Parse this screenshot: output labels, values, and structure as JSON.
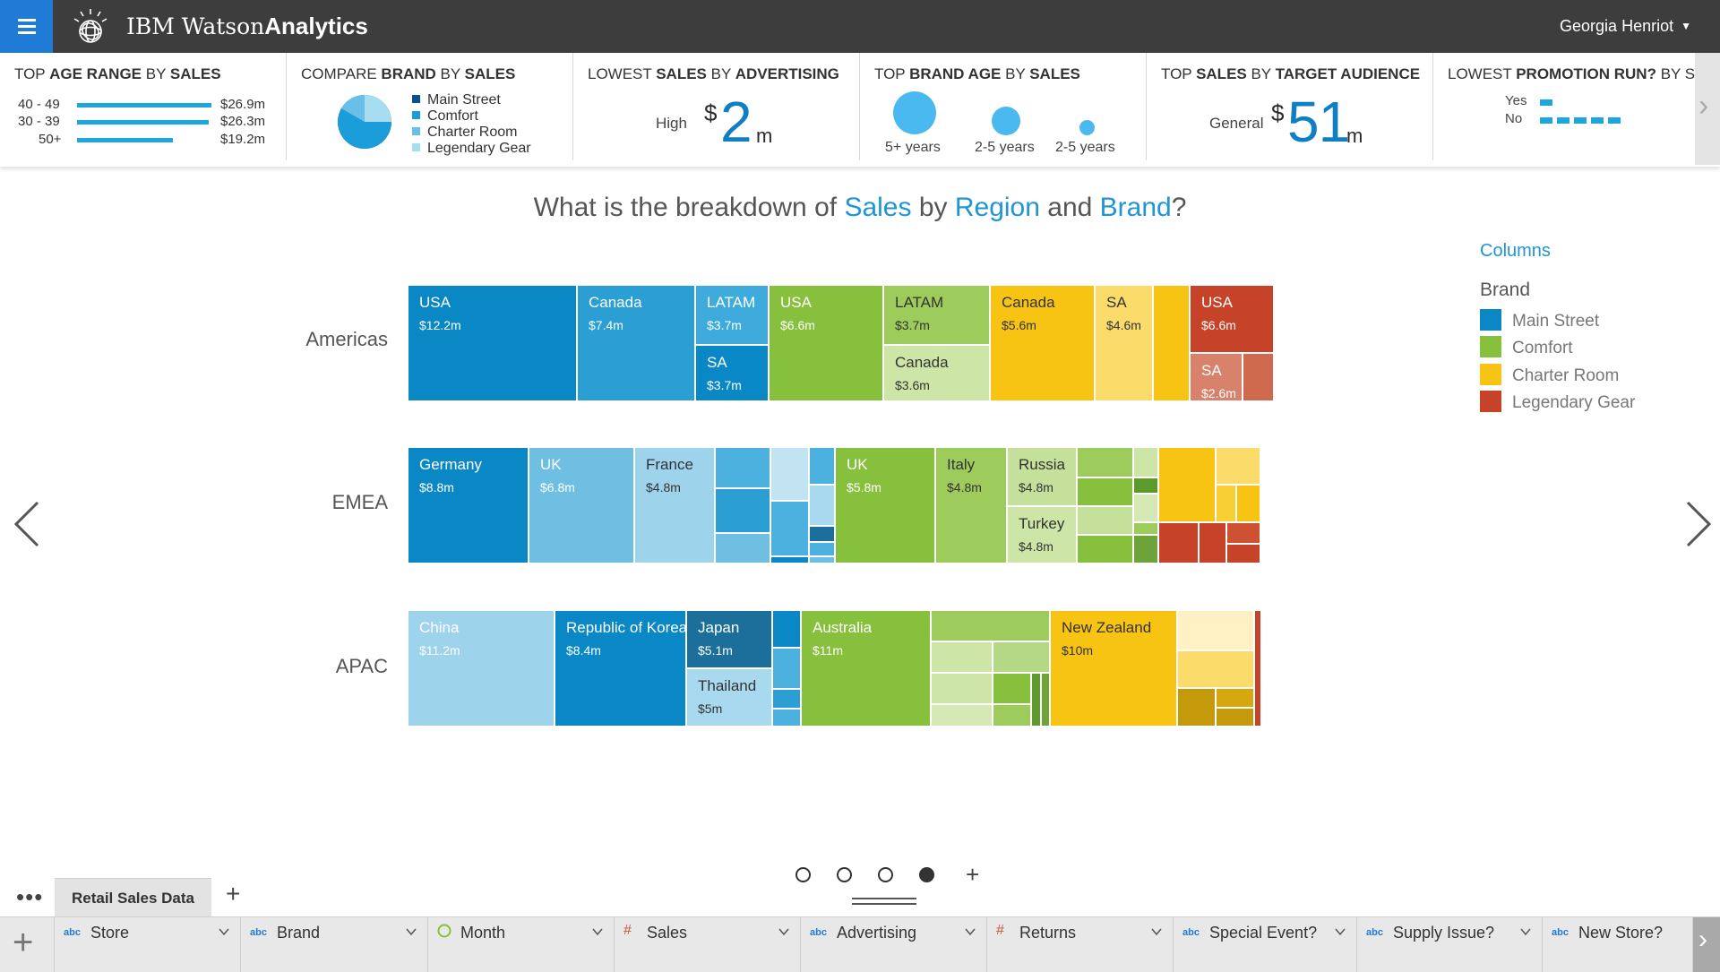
{
  "header": {
    "app_name_light": "IBM Watson",
    "app_name_bold": "Analytics",
    "user_name": "Georgia Henriot"
  },
  "insights": [
    {
      "title_light1": "Top ",
      "title_bold1": "Age Range",
      "title_light2": " by ",
      "title_bold2": "Sales",
      "rows": [
        {
          "label": "40 - 49",
          "value_text": "$26.9m",
          "value": 26.9
        },
        {
          "label": "30 - 39",
          "value_text": "$26.3m",
          "value": 26.3
        },
        {
          "label": "50+",
          "value_text": "$19.2m",
          "value": 19.2
        }
      ]
    },
    {
      "title_light1": "Compare ",
      "title_bold1": "Brand",
      "title_light2": " by ",
      "title_bold2": "Sales",
      "legend": [
        {
          "label": "Main Street",
          "color": "#0a4f8f"
        },
        {
          "label": "Comfort",
          "color": "#1b9dd9"
        },
        {
          "label": "Charter Room",
          "color": "#68c0e8"
        },
        {
          "label": "Legendary Gear",
          "color": "#a8dcf0"
        }
      ]
    },
    {
      "title_light1": "Lowest ",
      "title_bold1": "Sales",
      "title_light2": " by ",
      "title_bold2": "Advertising",
      "label": "High",
      "currency": "$",
      "value": "2",
      "unit": "m"
    },
    {
      "title_light1": "Top ",
      "title_bold1": "Brand Age",
      "title_light2": " by ",
      "title_bold2": "Sales",
      "bubbles": [
        {
          "label": "5+ years"
        },
        {
          "label": "2-5 years"
        },
        {
          "label": "2-5 years"
        }
      ]
    },
    {
      "title_light1": "Top ",
      "title_bold1": "Sales",
      "title_light2": " by ",
      "title_bold2": "Target Audience",
      "label": "General",
      "currency": "$",
      "value": "51",
      "unit": "m"
    },
    {
      "title_light1": "Lowest ",
      "title_bold1": "Promotion Run?",
      "title_light2": " by S",
      "title_bold2": "",
      "rows": [
        {
          "label": "Yes",
          "value": 1
        },
        {
          "label": "No",
          "value": 5
        }
      ]
    }
  ],
  "question": {
    "p1": "What is the breakdown of ",
    "h1": "Sales",
    "p2": " by ",
    "h2": "Region",
    "p3": " and ",
    "h3": "Brand",
    "p4": "?"
  },
  "legend": {
    "columns_link": "Columns",
    "title": "Brand",
    "items": [
      {
        "label": "Main Street",
        "color": "#0a88c6"
      },
      {
        "label": "Comfort",
        "color": "#86c03c"
      },
      {
        "label": "Charter Room",
        "color": "#f7c413"
      },
      {
        "label": "Legendary Gear",
        "color": "#c6432a"
      }
    ]
  },
  "chart_data": {
    "type": "treemap",
    "title": "What is the breakdown of Sales by Region and Brand?",
    "rows": [
      {
        "region": "Americas",
        "tiles": [
          {
            "brand": "Main Street",
            "name": "USA",
            "value_text": "$12.2m",
            "value": 12.2
          },
          {
            "brand": "Main Street",
            "name": "Canada",
            "value_text": "$7.4m",
            "value": 7.4
          },
          {
            "brand": "Main Street",
            "name": "LATAM",
            "value_text": "$3.7m",
            "value": 3.7
          },
          {
            "brand": "Main Street",
            "name": "SA",
            "value_text": "$3.7m",
            "value": 3.7
          },
          {
            "brand": "Comfort",
            "name": "USA",
            "value_text": "$6.6m",
            "value": 6.6
          },
          {
            "brand": "Comfort",
            "name": "LATAM",
            "value_text": "$3.7m",
            "value": 3.7
          },
          {
            "brand": "Comfort",
            "name": "Canada",
            "value_text": "$3.6m",
            "value": 3.6
          },
          {
            "brand": "Charter Room",
            "name": "Canada",
            "value_text": "$5.6m",
            "value": 5.6
          },
          {
            "brand": "Charter Room",
            "name": "SA",
            "value_text": "$4.6m",
            "value": 4.6
          },
          {
            "brand": "Legendary Gear",
            "name": "USA",
            "value_text": "$6.6m",
            "value": 6.6
          },
          {
            "brand": "Legendary Gear",
            "name": "SA",
            "value_text": "$2.6m",
            "value": 2.6
          }
        ]
      },
      {
        "region": "EMEA",
        "tiles": [
          {
            "brand": "Main Street",
            "name": "Germany",
            "value_text": "$8.8m",
            "value": 8.8
          },
          {
            "brand": "Main Street",
            "name": "UK",
            "value_text": "$6.8m",
            "value": 6.8
          },
          {
            "brand": "Main Street",
            "name": "France",
            "value_text": "$4.8m",
            "value": 4.8
          },
          {
            "brand": "Comfort",
            "name": "UK",
            "value_text": "$5.8m",
            "value": 5.8
          },
          {
            "brand": "Comfort",
            "name": "Italy",
            "value_text": "$4.8m",
            "value": 4.8
          },
          {
            "brand": "Comfort",
            "name": "Russia",
            "value_text": "$4.8m",
            "value": 4.8
          },
          {
            "brand": "Comfort",
            "name": "Turkey",
            "value_text": "$4.8m",
            "value": 4.8
          }
        ]
      },
      {
        "region": "APAC",
        "tiles": [
          {
            "brand": "Main Street",
            "name": "China",
            "value_text": "$11.2m",
            "value": 11.2
          },
          {
            "brand": "Main Street",
            "name": "Republic of Korea",
            "value_text": "$8.4m",
            "value": 8.4
          },
          {
            "brand": "Main Street",
            "name": "Japan",
            "value_text": "$5.1m",
            "value": 5.1
          },
          {
            "brand": "Main Street",
            "name": "Thailand",
            "value_text": "$5m",
            "value": 5
          },
          {
            "brand": "Comfort",
            "name": "Australia",
            "value_text": "$11m",
            "value": 11
          },
          {
            "brand": "Charter Room",
            "name": "New Zealand",
            "value_text": "$10m",
            "value": 10
          }
        ]
      }
    ]
  },
  "pager": {
    "pages": 4,
    "active": 3
  },
  "data_tab": {
    "label": "Retail Sales Data"
  },
  "columns": [
    {
      "type": "abc",
      "name": "Store"
    },
    {
      "type": "abc",
      "name": "Brand"
    },
    {
      "type": "time",
      "name": "Month"
    },
    {
      "type": "#",
      "name": "Sales"
    },
    {
      "type": "abc",
      "name": "Advertising"
    },
    {
      "type": "#",
      "name": "Returns"
    },
    {
      "type": "abc",
      "name": "Special Event?"
    },
    {
      "type": "abc",
      "name": "Supply Issue?"
    },
    {
      "type": "abc",
      "name": "New Store?"
    }
  ]
}
